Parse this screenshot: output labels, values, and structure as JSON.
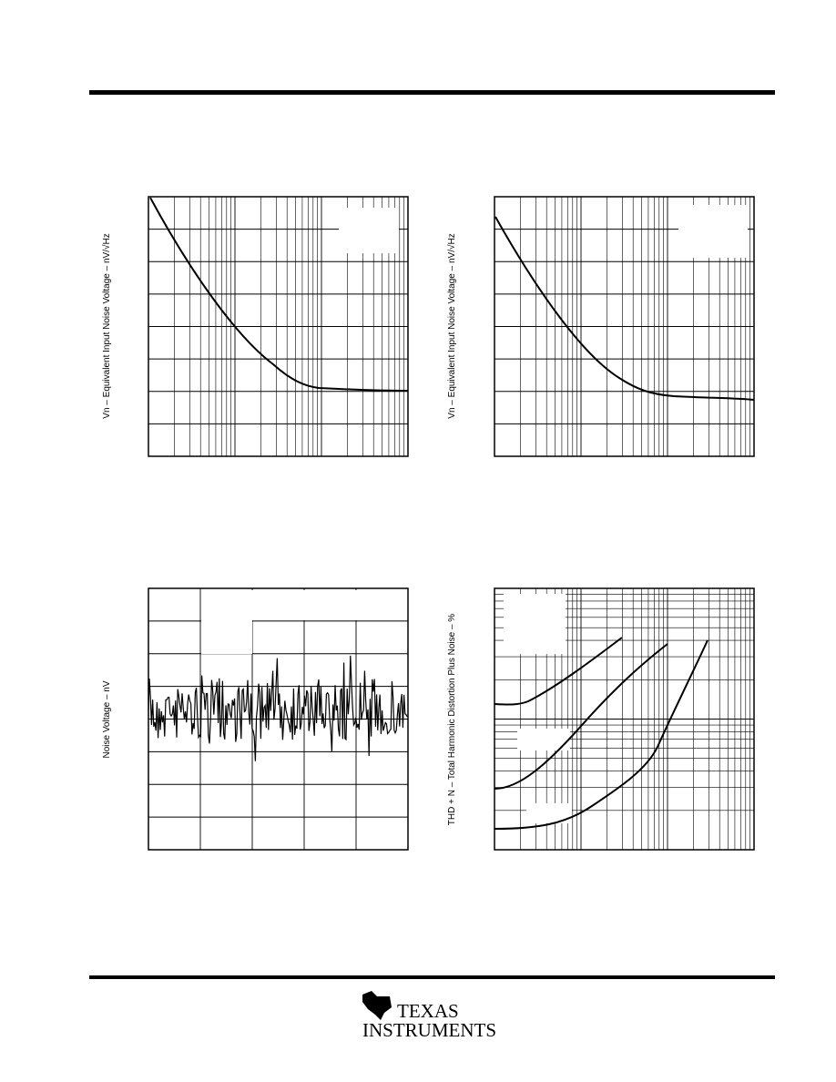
{
  "charts": [
    {
      "y_label": "Vn – Equivalent Input Noise Voltage – nV/√Hz"
    },
    {
      "y_label": "Vn – Equivalent Input Noise Voltage – nV/√Hz"
    },
    {
      "y_label": "Noise Voltage – nV"
    },
    {
      "y_label": "THD + N – Total Harmonic Distortion Plus Noise – %"
    }
  ],
  "logo": {
    "line1": "TEXAS",
    "line2": "INSTRUMENTS"
  }
}
